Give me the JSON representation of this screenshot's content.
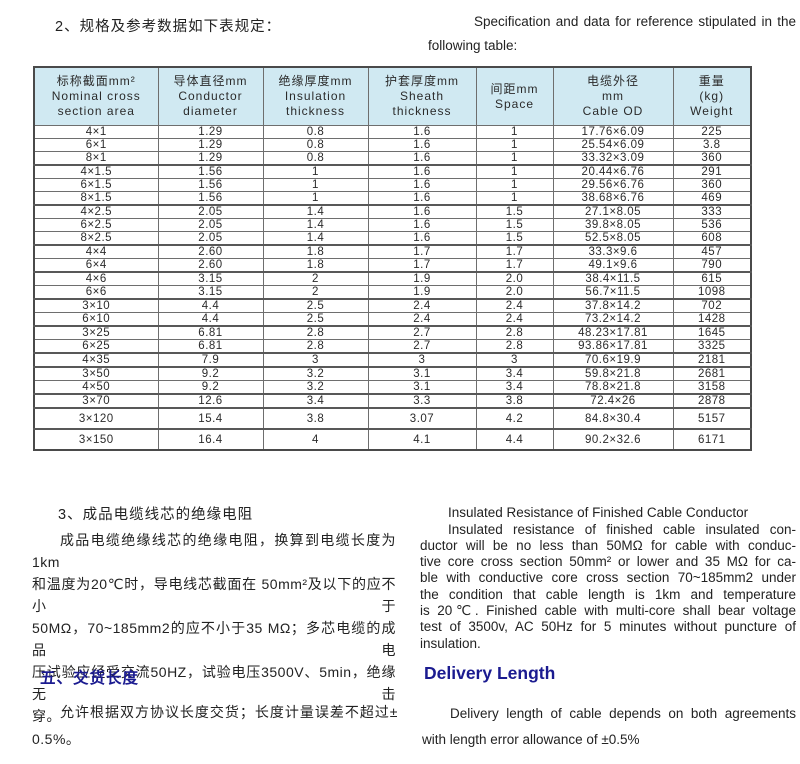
{
  "intro": {
    "zh": "2、规格及参考数据如下表规定：",
    "en_lines": [
      "Specification and data for reference stipulated in the",
      "following table:"
    ]
  },
  "table": {
    "headers": [
      {
        "lines": [
          "标称截面mm²",
          "Nominal cross",
          "section area"
        ]
      },
      {
        "lines": [
          "导体直径mm",
          "Conductor",
          "diameter"
        ]
      },
      {
        "lines": [
          "绝缘厚度mm",
          "Insulation",
          "thickness"
        ]
      },
      {
        "lines": [
          "护套厚度mm",
          "Sheath",
          "thickness"
        ]
      },
      {
        "lines": [
          "间距mm",
          "Space"
        ]
      },
      {
        "lines": [
          "电缆外径",
          "mm",
          "Cable OD"
        ]
      },
      {
        "lines": [
          "重量",
          "(kg)",
          "Weight"
        ]
      }
    ],
    "rows": [
      {
        "cells": [
          "4×1",
          "1.29",
          "0.8",
          "1.6",
          "1",
          "17.76×6.09",
          "225"
        ]
      },
      {
        "cells": [
          "6×1",
          "1.29",
          "0.8",
          "1.6",
          "1",
          "25.54×6.09",
          "3.8"
        ]
      },
      {
        "cells": [
          "8×1",
          "1.29",
          "0.8",
          "1.6",
          "1",
          "33.32×3.09",
          "360"
        ]
      },
      {
        "cells": [
          "4×1.5",
          "1.56",
          "1",
          "1.6",
          "1",
          "20.44×6.76",
          "291"
        ],
        "sep": true
      },
      {
        "cells": [
          "6×1.5",
          "1.56",
          "1",
          "1.6",
          "1",
          "29.56×6.76",
          "360"
        ]
      },
      {
        "cells": [
          "8×1.5",
          "1.56",
          "1",
          "1.6",
          "1",
          "38.68×6.76",
          "469"
        ]
      },
      {
        "cells": [
          "4×2.5",
          "2.05",
          "1.4",
          "1.6",
          "1.5",
          "27.1×8.05",
          "333"
        ],
        "sep": true
      },
      {
        "cells": [
          "6×2.5",
          "2.05",
          "1.4",
          "1.6",
          "1.5",
          "39.8×8.05",
          "536"
        ]
      },
      {
        "cells": [
          "8×2.5",
          "2.05",
          "1.4",
          "1.6",
          "1.5",
          "52.5×8.05",
          "608"
        ]
      },
      {
        "cells": [
          "4×4",
          "2.60",
          "1.8",
          "1.7",
          "1.7",
          "33.3×9.6",
          "457"
        ],
        "sep": true
      },
      {
        "cells": [
          "6×4",
          "2.60",
          "1.8",
          "1.7",
          "1.7",
          "49.1×9.6",
          "790"
        ]
      },
      {
        "cells": [
          "4×6",
          "3.15",
          "2",
          "1.9",
          "2.0",
          "38.4×11.5",
          "615"
        ],
        "sep": true
      },
      {
        "cells": [
          "6×6",
          "3.15",
          "2",
          "1.9",
          "2.0",
          "56.7×11.5",
          "1098"
        ]
      },
      {
        "cells": [
          "3×10",
          "4.4",
          "2.5",
          "2.4",
          "2.4",
          "37.8×14.2",
          "702"
        ],
        "sep": true
      },
      {
        "cells": [
          "6×10",
          "4.4",
          "2.5",
          "2.4",
          "2.4",
          "73.2×14.2",
          "1428"
        ]
      },
      {
        "cells": [
          "3×25",
          "6.81",
          "2.8",
          "2.7",
          "2.8",
          "48.23×17.81",
          "1645"
        ],
        "sep": true
      },
      {
        "cells": [
          "6×25",
          "6.81",
          "2.8",
          "2.7",
          "2.8",
          "93.86×17.81",
          "3325"
        ]
      },
      {
        "cells": [
          "4×35",
          "7.9",
          "3",
          "3",
          "3",
          "70.6×19.9",
          "2181"
        ],
        "sep": true
      },
      {
        "cells": [
          "3×50",
          "9.2",
          "3.2",
          "3.1",
          "3.4",
          "59.8×21.8",
          "2681"
        ],
        "sep": true
      },
      {
        "cells": [
          "4×50",
          "9.2",
          "3.2",
          "3.1",
          "3.4",
          "78.8×21.8",
          "3158"
        ]
      },
      {
        "cells": [
          "3×70",
          "12.6",
          "3.4",
          "3.3",
          "3.8",
          "72.4×26",
          "2878"
        ],
        "sep": true
      },
      {
        "cells": [
          "3×120",
          "15.4",
          "3.8",
          "3.07",
          "4.2",
          "84.8×30.4",
          "5157"
        ],
        "sep": true,
        "tall": true
      },
      {
        "cells": [
          "3×150",
          "16.4",
          "4",
          "4.1",
          "4.4",
          "90.2×32.6",
          "6171"
        ],
        "sep": true,
        "tall": true
      }
    ]
  },
  "section3": {
    "zh_heading": "3、成品电缆线芯的绝缘电阻",
    "zh_lines": [
      "成品电缆绝缘线芯的绝缘电阻，换算到电缆长度为1km",
      "和温度为20℃时，导电线芯截面在 50mm²及以下的应不小于",
      "50MΩ，70~185mm2的应不小于35 MΩ；多芯电缆的成品电",
      "压试验应经受交流50HZ，试验电压3500V、5min，绝缘无击",
      "穿。"
    ],
    "en_heading": "Insulated Resistance of Finished Cable Conductor",
    "en_lines": [
      "Insulated resistance of finished cable insulated con-",
      "ductor will be no less than 50MΩ for cable with conduc-",
      "tive core cross section  50mm² or lower and 35 MΩ for ca-",
      "ble with conductive core cross section 70~185mm2 under",
      "the condition that cable length is 1km and temperature",
      "is 20℃. Finished cable with multi-core shall bear voltage",
      "test of 3500v, AC 50Hz for 5 minutes without puncture of",
      "insulation."
    ]
  },
  "section5": {
    "zh_heading": "五、交货长度",
    "zh_lines": [
      "允许根据双方协议长度交货；长度计量误差不超过±",
      "0.5%。"
    ],
    "en_heading": "Delivery Length",
    "en_lines": [
      "Delivery length of cable depends on both agreements",
      "with length error allowance of ±0.5%"
    ]
  },
  "colors": {
    "accent_navy": "#1b1b90",
    "table_header_bg": "#d0e9f2"
  }
}
